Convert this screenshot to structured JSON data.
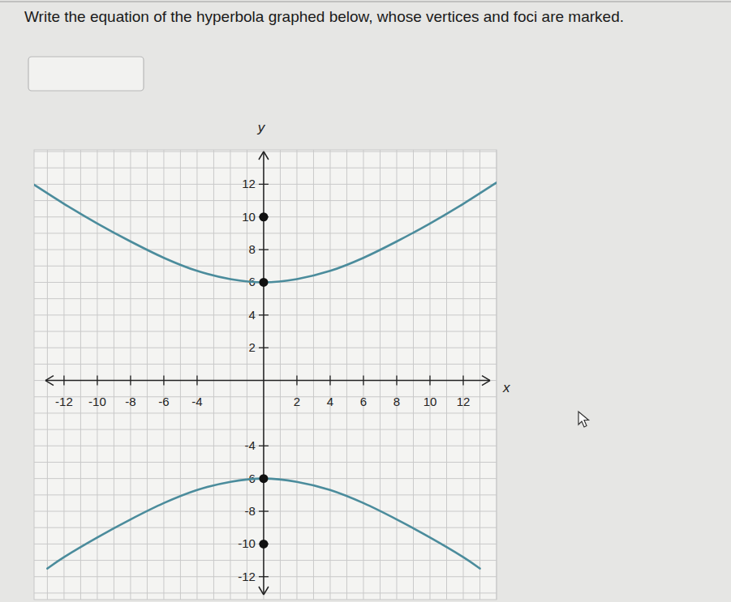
{
  "question": "Write the equation of the hyperbola graphed below, whose vertices and foci are marked.",
  "chart_data": {
    "type": "line",
    "x_label": "x",
    "y_label": "y",
    "xlim": [
      -13.8,
      14
    ],
    "ylim": [
      -13.4,
      14.1
    ],
    "xticks": [
      -12,
      -10,
      -8,
      -6,
      -4,
      2,
      4,
      6,
      8,
      10,
      12
    ],
    "yticks": [
      -12,
      -10,
      -8,
      -6,
      -4,
      2,
      4,
      6,
      8,
      10,
      12
    ],
    "grid": true,
    "series": [
      {
        "type": "line",
        "color": "#4b8c9c",
        "x": [
          -14,
          -12,
          -10,
          -8,
          -6,
          -4,
          -2,
          0,
          2,
          4,
          6,
          8,
          10,
          12,
          14
        ],
        "values": [
          12.1,
          10.8,
          9.6,
          8.5,
          7.5,
          6.7,
          6.2,
          6,
          6.2,
          6.7,
          7.5,
          8.5,
          9.6,
          10.8,
          12.1
        ]
      },
      {
        "type": "line",
        "color": "#4b8c9c",
        "x": [
          -13,
          -12,
          -10,
          -8,
          -6,
          -4,
          -2,
          0,
          2,
          4,
          6,
          8,
          10,
          12,
          13
        ],
        "values": [
          -11.5,
          -10.8,
          -9.6,
          -8.5,
          -7.5,
          -6.7,
          -6.2,
          -6,
          -6.2,
          -6.7,
          -7.5,
          -8.5,
          -9.6,
          -10.8,
          -11.5
        ]
      },
      {
        "type": "scatter",
        "marker": "circle",
        "color": "#111111",
        "x": [
          0,
          0,
          0,
          0
        ],
        "values": [
          10,
          6,
          -6,
          -10
        ]
      }
    ]
  }
}
